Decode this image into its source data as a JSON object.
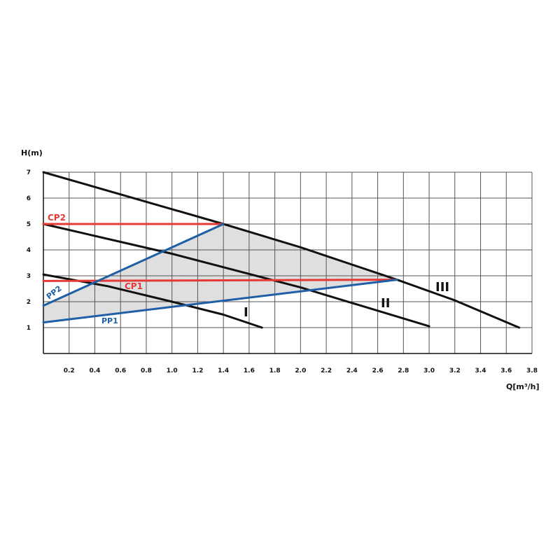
{
  "chart_data": {
    "type": "line",
    "title": "",
    "xlabel": "Q[m³/h]",
    "ylabel": "H(m)",
    "xlim": [
      0,
      3.8
    ],
    "ylim": [
      0,
      7
    ],
    "grid": true,
    "x_ticks": [
      "0.2",
      "0.4",
      "0.6",
      "0.8",
      "1.0",
      "1.2",
      "1.4",
      "1.6",
      "1.8",
      "2.0",
      "2.2",
      "2.4",
      "2.6",
      "2.8",
      "3.0",
      "3.2",
      "3.4",
      "3.6",
      "3.8"
    ],
    "y_ticks": [
      "1",
      "2",
      "3",
      "4",
      "5",
      "6",
      "7"
    ],
    "shaded_region": [
      [
        0,
        1.85
      ],
      [
        1.4,
        5.0
      ],
      [
        2.75,
        2.85
      ],
      [
        0,
        1.2
      ]
    ],
    "series": [
      {
        "name": "I",
        "color": "#111111",
        "points": [
          [
            0,
            3.05
          ],
          [
            0.5,
            2.6
          ],
          [
            1.0,
            2.0
          ],
          [
            1.4,
            1.5
          ],
          [
            1.7,
            1.0
          ]
        ]
      },
      {
        "name": "II",
        "color": "#111111",
        "points": [
          [
            0,
            5.0
          ],
          [
            1.0,
            3.85
          ],
          [
            2.0,
            2.55
          ],
          [
            3.0,
            1.05
          ]
        ]
      },
      {
        "name": "III",
        "color": "#111111",
        "points": [
          [
            0,
            7.0
          ],
          [
            1.4,
            5.0
          ],
          [
            2.0,
            4.1
          ],
          [
            2.75,
            2.85
          ],
          [
            3.2,
            2.05
          ],
          [
            3.7,
            1.0
          ]
        ]
      },
      {
        "name": "CP1",
        "color": "#e53935",
        "points": [
          [
            0,
            2.8
          ],
          [
            2.75,
            2.85
          ]
        ]
      },
      {
        "name": "CP2",
        "color": "#e53935",
        "points": [
          [
            0,
            5.0
          ],
          [
            1.4,
            5.0
          ]
        ]
      },
      {
        "name": "PP1",
        "color": "#1f5fa5",
        "points": [
          [
            0,
            1.2
          ],
          [
            2.75,
            2.85
          ]
        ]
      },
      {
        "name": "PP2",
        "color": "#1f5fa5",
        "points": [
          [
            0,
            1.85
          ],
          [
            1.4,
            5.0
          ]
        ]
      }
    ]
  }
}
